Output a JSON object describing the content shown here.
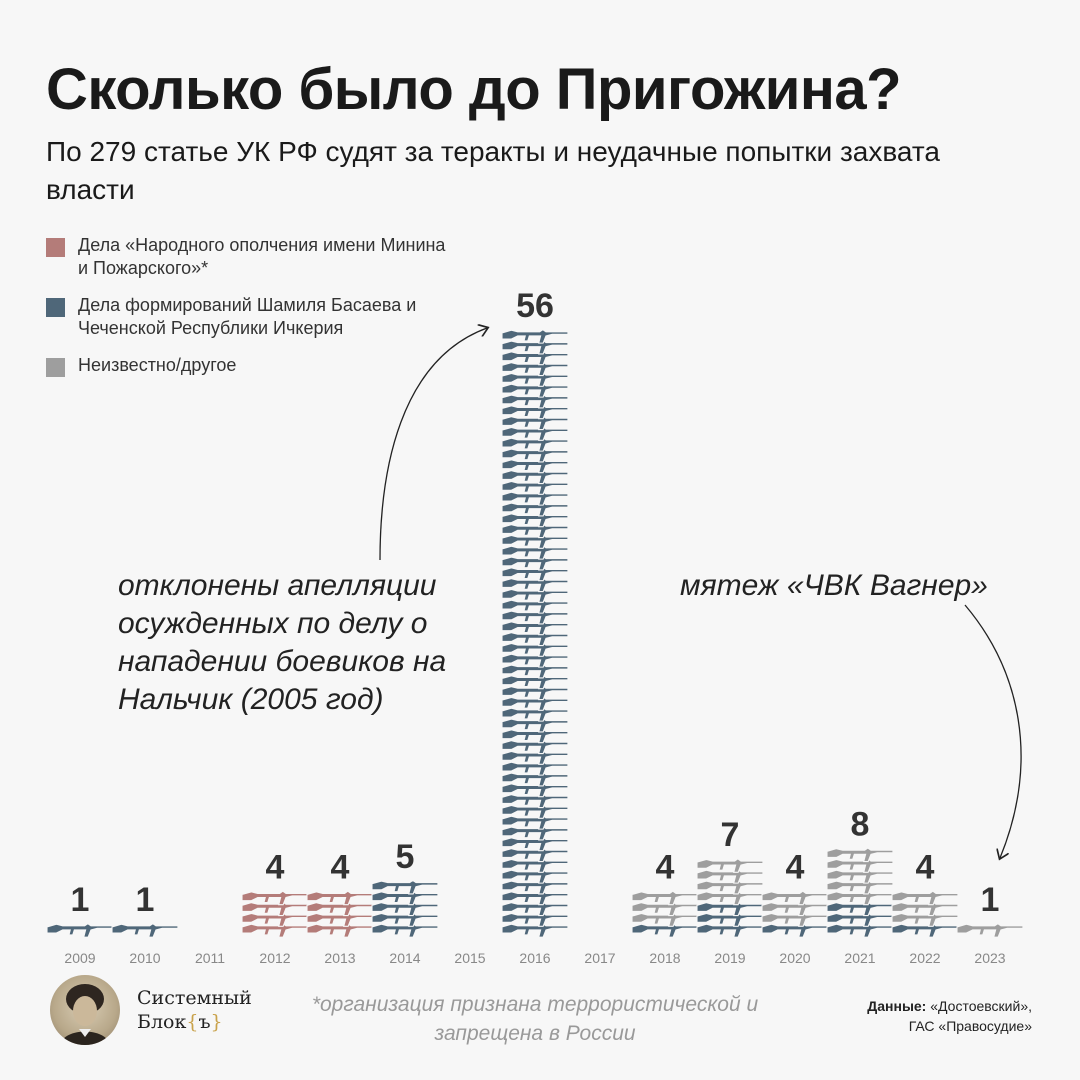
{
  "title": "Сколько было до Пригожина?",
  "subtitle": "По 279 статье УК РФ судят за теракты и неудачные попытки захвата власти",
  "legend": [
    {
      "label": "Дела «Народного ополчения имени Минина и Пожарского»*",
      "color": "#b47c79"
    },
    {
      "label": "Дела формирований Шамиля Басаева и Чеченской Республики Ичкерия",
      "color": "#4f6779"
    },
    {
      "label": "Неизвестно/другое",
      "color": "#9e9e9e"
    }
  ],
  "annotations": {
    "nalchik": "отклонены апелляции осужденных по делу о нападении боевиков на Нальчик (2005 год)",
    "wagner": "мятеж «ЧВК Вагнер»"
  },
  "chart_data": {
    "type": "bar",
    "categories": [
      "2009",
      "2010",
      "2011",
      "2012",
      "2013",
      "2014",
      "2015",
      "2016",
      "2017",
      "2018",
      "2019",
      "2020",
      "2021",
      "2022",
      "2023"
    ],
    "series": [
      {
        "name": "Дела «Народного ополчения имени Минина и Пожарского»*",
        "color": "#b47c79",
        "values": [
          0,
          0,
          0,
          4,
          4,
          0,
          0,
          0,
          0,
          0,
          0,
          0,
          0,
          0,
          0
        ]
      },
      {
        "name": "Дела формирований Шамиля Басаева и Чеченской Республики Ичкерия",
        "color": "#4f6779",
        "values": [
          1,
          1,
          0,
          0,
          0,
          5,
          0,
          56,
          0,
          1,
          3,
          1,
          3,
          1,
          0
        ]
      },
      {
        "name": "Неизвестно/другое",
        "color": "#9e9e9e",
        "values": [
          0,
          0,
          0,
          0,
          0,
          0,
          0,
          0,
          0,
          3,
          4,
          3,
          5,
          3,
          1
        ]
      }
    ],
    "totals": [
      1,
      1,
      0,
      4,
      4,
      5,
      0,
      56,
      0,
      4,
      7,
      4,
      8,
      4,
      1
    ]
  },
  "footer": {
    "brand_line1": "Системный",
    "brand_line2": "Блок",
    "brand_brace_open": "{",
    "brand_letter": "ъ",
    "brand_brace_close": "}",
    "footnote": "*организация признана террористической и запрещена в России",
    "source_label": "Данные:",
    "source_line1": "«Достоевский»,",
    "source_line2": "ГАС «Правосудие»"
  }
}
